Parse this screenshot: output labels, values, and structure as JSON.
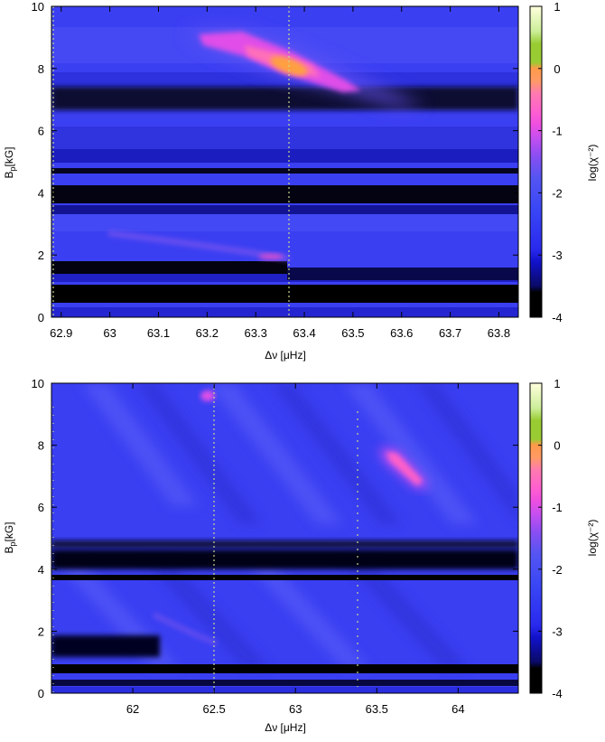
{
  "chart_data": [
    {
      "type": "heatmap",
      "xlabel": "Δν [μHz]",
      "ylabel_main": "B",
      "ylabel_sub": "p",
      "ylabel_unit": "[kG]",
      "colorbar_label": "log(χ⁻²)",
      "xlim": [
        62.88,
        63.84
      ],
      "ylim": [
        0,
        10
      ],
      "xticks": [
        62.9,
        63.0,
        63.1,
        63.2,
        63.3,
        63.4,
        63.5,
        63.6,
        63.7,
        63.8
      ],
      "xtick_labels": [
        "62.9",
        "63",
        "63.1",
        "63.2",
        "63.3",
        "63.4",
        "63.5",
        "63.6",
        "63.7",
        "63.8"
      ],
      "yticks": [
        0,
        2,
        4,
        6,
        8,
        10
      ],
      "ytick_labels": [
        "0",
        "2",
        "4",
        "6",
        "8",
        "10"
      ],
      "clim": [
        -4,
        1
      ],
      "cticks": [
        1,
        0,
        -1,
        -2,
        -3,
        -4
      ],
      "ctick_labels": [
        "1",
        "0",
        "-1",
        "-2",
        "-3",
        "-4"
      ],
      "marker_lines_x": [
        63.37
      ],
      "dark_bands_y": [
        [
          0.45,
          1.0
        ],
        [
          1.5,
          1.8
        ],
        [
          3.6,
          4.0
        ],
        [
          4.6,
          4.75
        ],
        [
          6.8,
          7.4
        ]
      ],
      "peak": {
        "x": 63.36,
        "y": 8.1,
        "value": 0.2
      }
    },
    {
      "type": "heatmap",
      "xlabel": "Δν [μHz]",
      "ylabel_main": "B",
      "ylabel_sub": "p",
      "ylabel_unit": "[kG]",
      "colorbar_label": "log(χ⁻²)",
      "xlim": [
        61.5,
        64.37
      ],
      "ylim": [
        0,
        10
      ],
      "xticks": [
        62.0,
        62.5,
        63.0,
        63.5,
        64.0
      ],
      "xtick_labels": [
        "62",
        "62.5",
        "63",
        "63.5",
        "64"
      ],
      "yticks": [
        0,
        2,
        4,
        6,
        8,
        10
      ],
      "ytick_labels": [
        "0",
        "2",
        "4",
        "6",
        "8",
        "10"
      ],
      "clim": [
        -4,
        1
      ],
      "cticks": [
        1,
        0,
        -1,
        -2,
        -3,
        -4
      ],
      "ctick_labels": [
        "1",
        "0",
        "-1",
        "-2",
        "-3",
        "-4"
      ],
      "marker_lines_x": [
        62.53,
        63.4
      ],
      "dark_bands_y": [
        [
          0.6,
          0.85
        ],
        [
          3.55,
          3.75
        ],
        [
          4.1,
          4.8
        ],
        [
          1.0,
          1.6
        ]
      ],
      "peak": {
        "x": 63.65,
        "y": 7.3,
        "value": -0.7
      }
    }
  ]
}
